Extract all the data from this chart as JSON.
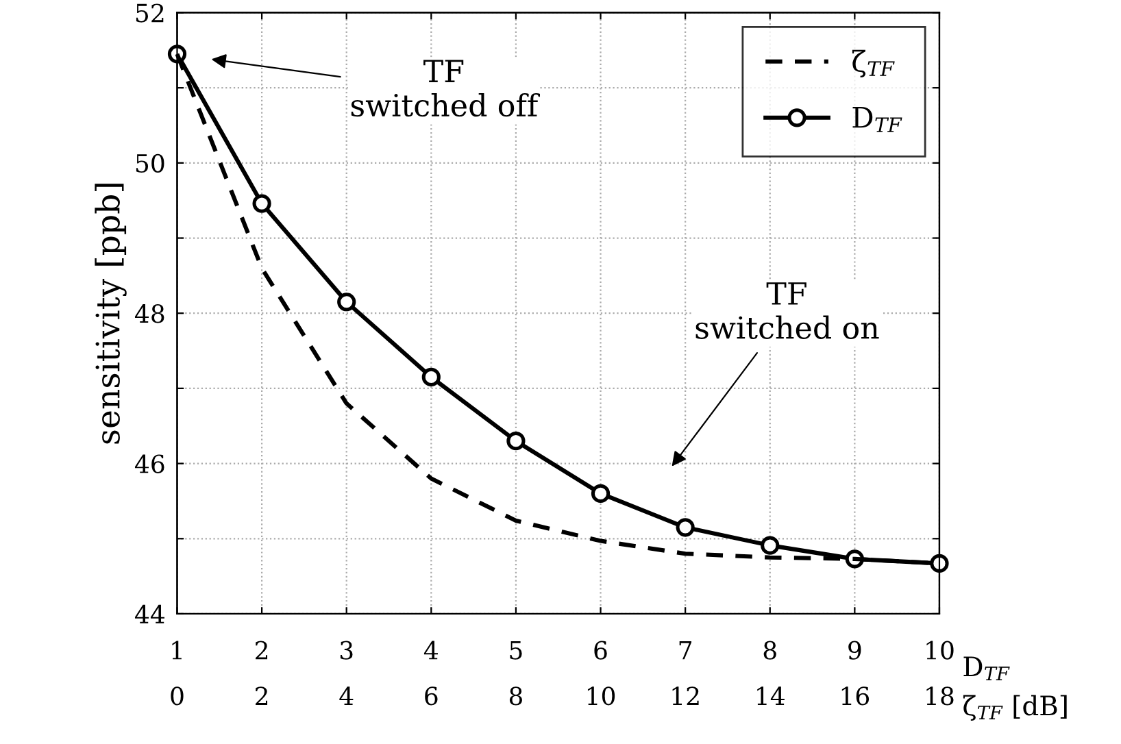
{
  "chart_data": {
    "type": "line",
    "ylabel": "sensitivity [ppb]",
    "xlabel": "D$_{TF}$",
    "x2label": "ζ$_{TF}$ [dB]",
    "xlim": [
      1,
      10
    ],
    "xticks": [
      1,
      2,
      3,
      4,
      5,
      6,
      7,
      8,
      9,
      10
    ],
    "x2lim": [
      0,
      18
    ],
    "x2ticks": [
      0,
      2,
      4,
      6,
      8,
      10,
      12,
      14,
      16,
      18
    ],
    "ylim": [
      44,
      52
    ],
    "yticks": [
      44,
      {
        "value": 45,
        "label": null
      },
      46,
      {
        "value": 47,
        "label": null
      },
      48,
      {
        "value": 49,
        "label": null
      },
      50,
      {
        "value": 51,
        "label": null
      },
      52
    ],
    "grid": true,
    "legend": "top right",
    "series": [
      {
        "name": "ζ$_{TF}$",
        "color": "#000000",
        "axis": "x2",
        "line_style": "dashed",
        "marker": "none",
        "x": [
          0,
          2,
          4,
          6,
          8,
          10,
          12,
          14,
          16,
          18
        ],
        "values": [
          51.45,
          48.6,
          46.8,
          45.8,
          45.24,
          44.97,
          44.8,
          44.75,
          44.73,
          44.67
        ]
      },
      {
        "name": "D$_{TF}$",
        "color": "#000000",
        "line_style": "solid",
        "marker": "circle",
        "x": [
          1,
          2,
          3,
          4,
          5,
          6,
          7,
          8,
          9,
          10
        ],
        "values": [
          51.45,
          49.46,
          48.15,
          47.15,
          46.3,
          45.6,
          45.15,
          44.91,
          44.73,
          44.67
        ]
      }
    ],
    "annotations": [
      "TF\nswitched off",
      "TF\nswitched on"
    ]
  }
}
